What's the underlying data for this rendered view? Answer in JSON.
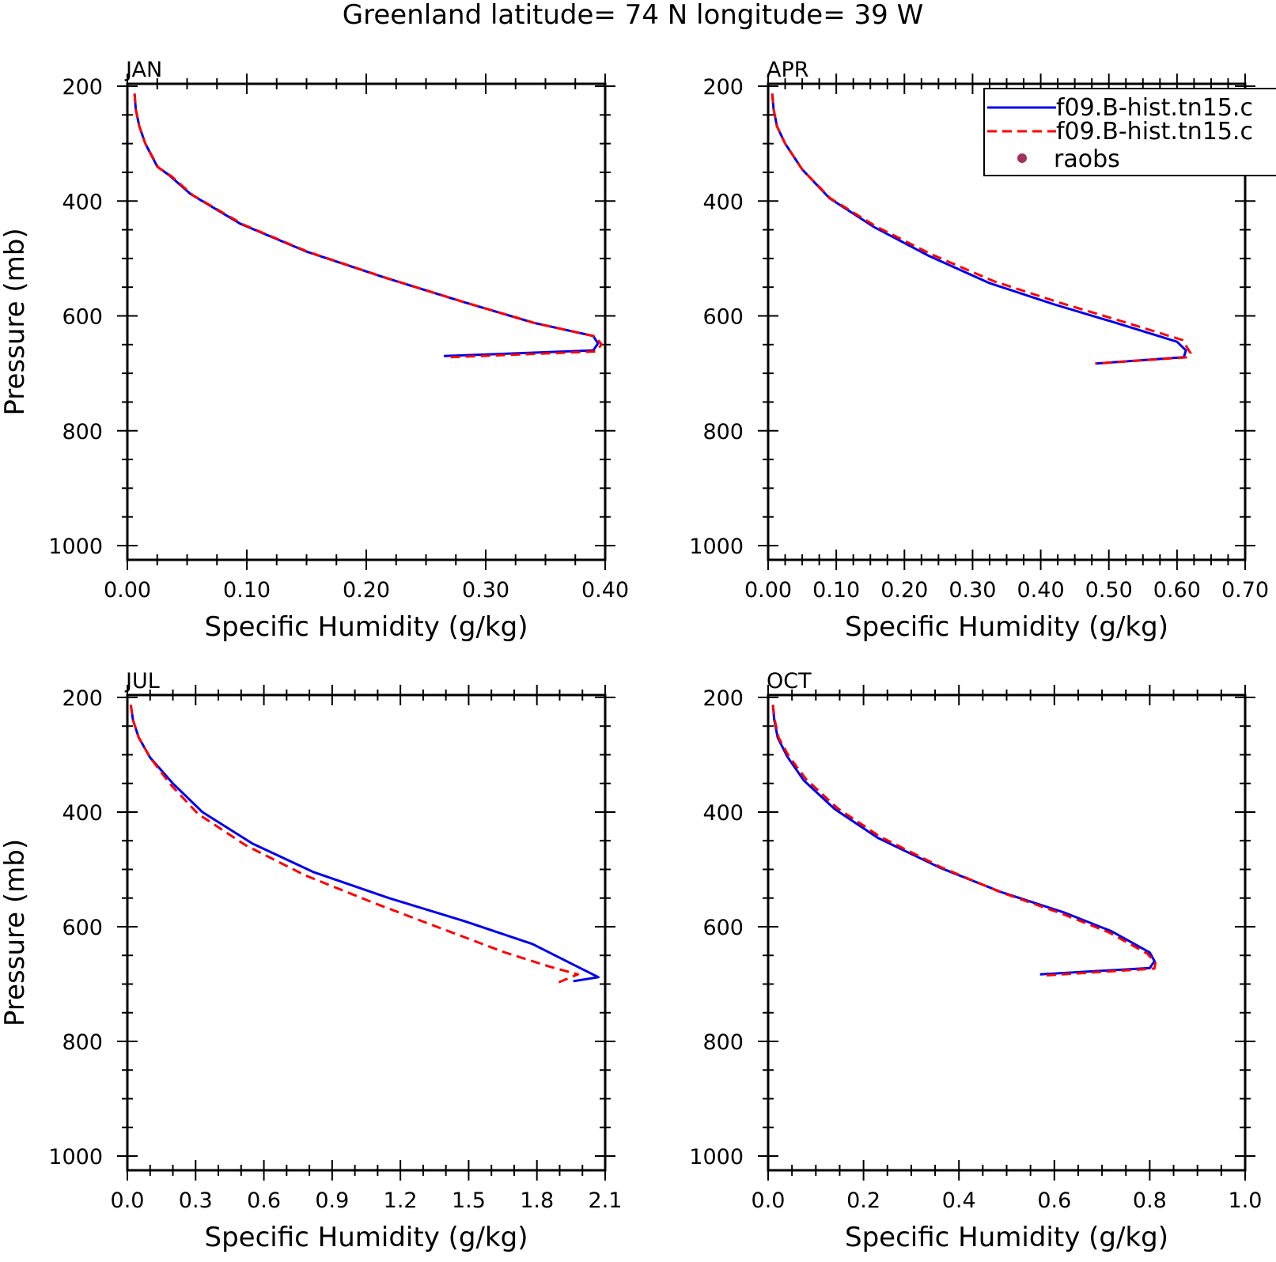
{
  "figure": {
    "title": "Greenland  latitude= 74 N longitude= 39 W"
  },
  "legend": {
    "items": [
      {
        "label": "f09.B-hist.tn15.c",
        "color": "#0000ee",
        "style": "solid"
      },
      {
        "label": "f09.B-hist.tn15.c",
        "color": "#ff0000",
        "style": "dashed"
      },
      {
        "label": "raobs",
        "color": "#a3305e",
        "style": "marker"
      }
    ]
  },
  "chart_data": [
    {
      "type": "line",
      "title": "JAN",
      "xlabel": "Specific Humidity (g/kg)",
      "ylabel": "Pressure (mb)",
      "xlim": [
        0,
        0.4
      ],
      "ylim": [
        1000,
        200
      ],
      "y_inverted": true,
      "xticks": [
        "0.00",
        "0.10",
        "0.20",
        "0.30",
        "0.40"
      ],
      "yticks": [
        "200",
        "400",
        "600",
        "800",
        "1000"
      ],
      "series": [
        {
          "color": "#0000ee",
          "style": "solid",
          "x": [
            0.006,
            0.007,
            0.01,
            0.015,
            0.025,
            0.035,
            0.053,
            0.095,
            0.15,
            0.215,
            0.28,
            0.34,
            0.39,
            0.394,
            0.39,
            0.265
          ],
          "y": [
            213,
            240,
            270,
            300,
            340,
            355,
            388,
            440,
            488,
            533,
            575,
            612,
            635,
            648,
            660,
            670
          ]
        },
        {
          "color": "#ff0000",
          "style": "dashed",
          "x": [
            0.006,
            0.007,
            0.01,
            0.015,
            0.026,
            0.037,
            0.055,
            0.097,
            0.152,
            0.217,
            0.282,
            0.342,
            0.392,
            0.397,
            0.392,
            0.27
          ],
          "y": [
            213,
            240,
            270,
            300,
            342,
            357,
            390,
            441,
            489,
            534,
            576,
            613,
            636,
            650,
            662,
            672
          ]
        }
      ]
    },
    {
      "type": "line",
      "title": "APR",
      "xlabel": "Specific Humidity (g/kg)",
      "ylabel": "",
      "xlim": [
        0,
        0.7
      ],
      "ylim": [
        1000,
        200
      ],
      "y_inverted": true,
      "xticks": [
        "0.00",
        "0.10",
        "0.20",
        "0.30",
        "0.40",
        "0.50",
        "0.60",
        "0.70"
      ],
      "yticks": [
        "200",
        "400",
        "600",
        "800",
        "1000"
      ],
      "series": [
        {
          "color": "#0000ee",
          "style": "solid",
          "x": [
            0.006,
            0.008,
            0.013,
            0.025,
            0.05,
            0.09,
            0.155,
            0.235,
            0.325,
            0.42,
            0.51,
            0.6,
            0.613,
            0.61,
            0.48
          ],
          "y": [
            213,
            240,
            270,
            300,
            345,
            395,
            445,
            495,
            543,
            580,
            612,
            645,
            660,
            672,
            683
          ]
        },
        {
          "color": "#ff0000",
          "style": "dashed",
          "x": [
            0.006,
            0.008,
            0.013,
            0.025,
            0.05,
            0.091,
            0.158,
            0.24,
            0.332,
            0.428,
            0.518,
            0.608,
            0.62,
            0.616,
            0.48
          ],
          "y": [
            213,
            240,
            270,
            300,
            345,
            395,
            444,
            493,
            540,
            577,
            609,
            642,
            665,
            672,
            683
          ]
        }
      ]
    },
    {
      "type": "line",
      "title": "JUL",
      "xlabel": "Specific Humidity (g/kg)",
      "ylabel": "Pressure (mb)",
      "xlim": [
        0,
        2.1
      ],
      "ylim": [
        1000,
        200
      ],
      "y_inverted": true,
      "xticks": [
        "0.0",
        "0.3",
        "0.6",
        "0.9",
        "1.2",
        "1.5",
        "1.8",
        "2.1"
      ],
      "yticks": [
        "200",
        "400",
        "600",
        "800",
        "1000"
      ],
      "series": [
        {
          "color": "#0000ee",
          "style": "solid",
          "x": [
            0.015,
            0.025,
            0.05,
            0.1,
            0.2,
            0.33,
            0.55,
            0.82,
            1.15,
            1.48,
            1.78,
            1.98,
            2.07,
            1.96
          ],
          "y": [
            213,
            240,
            270,
            305,
            350,
            400,
            455,
            505,
            550,
            590,
            630,
            670,
            688,
            695
          ]
        },
        {
          "color": "#ff0000",
          "style": "dashed",
          "x": [
            0.015,
            0.025,
            0.05,
            0.1,
            0.19,
            0.31,
            0.52,
            0.78,
            1.08,
            1.38,
            1.66,
            1.86,
            1.98,
            1.89
          ],
          "y": [
            213,
            240,
            270,
            305,
            352,
            403,
            458,
            510,
            558,
            603,
            645,
            670,
            683,
            698
          ]
        }
      ]
    },
    {
      "type": "line",
      "title": "OCT",
      "xlabel": "Specific Humidity (g/kg)",
      "ylabel": "",
      "xlim": [
        0,
        1.0
      ],
      "ylim": [
        1000,
        200
      ],
      "y_inverted": true,
      "xticks": [
        "0.0",
        "0.2",
        "0.4",
        "0.6",
        "0.8",
        "1.0"
      ],
      "yticks": [
        "200",
        "400",
        "600",
        "800",
        "1000"
      ],
      "series": [
        {
          "color": "#0000ee",
          "style": "solid",
          "x": [
            0.01,
            0.013,
            0.02,
            0.04,
            0.075,
            0.14,
            0.23,
            0.36,
            0.49,
            0.62,
            0.72,
            0.8,
            0.81,
            0.8,
            0.57
          ],
          "y": [
            213,
            240,
            270,
            303,
            345,
            395,
            445,
            497,
            540,
            575,
            608,
            645,
            660,
            672,
            683
          ]
        },
        {
          "color": "#ff0000",
          "style": "dashed",
          "x": [
            0.01,
            0.014,
            0.022,
            0.043,
            0.08,
            0.145,
            0.235,
            0.362,
            0.488,
            0.615,
            0.715,
            0.795,
            0.812,
            0.81,
            0.58
          ],
          "y": [
            213,
            240,
            270,
            302,
            343,
            393,
            443,
            496,
            540,
            577,
            610,
            647,
            663,
            673,
            685
          ]
        }
      ]
    }
  ]
}
